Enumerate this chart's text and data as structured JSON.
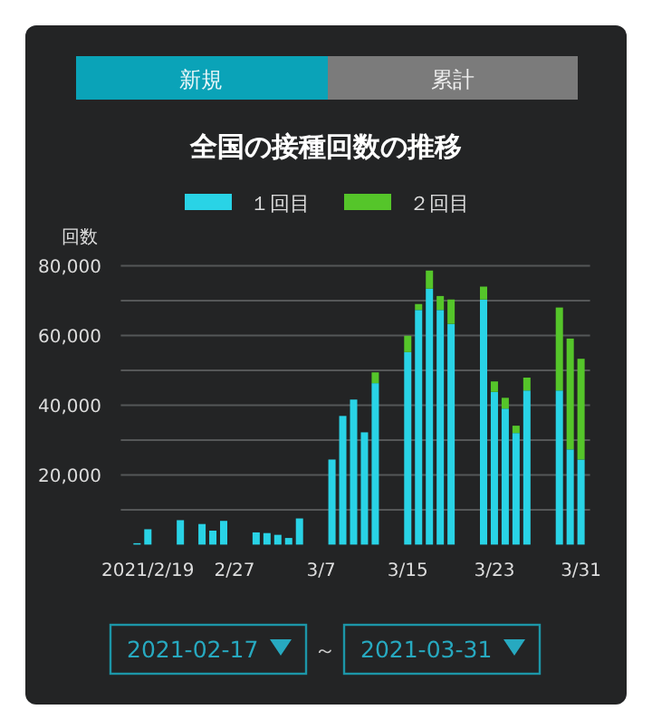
{
  "chart_data": {
    "type": "bar",
    "title": "全国の接種回数の推移",
    "ylabel": "回数",
    "stacked": true,
    "legend": "top",
    "grid": "y",
    "annotations": [
      "新規",
      "累計",
      "2021-02-17",
      "～",
      "2021-03-31"
    ],
    "categories": [
      null,
      null,
      "2021/2/19",
      null,
      null,
      null,
      null,
      null,
      null,
      null,
      "2/27",
      null,
      null,
      null,
      null,
      null,
      null,
      null,
      "3/7",
      null,
      null,
      null,
      null,
      null,
      null,
      null,
      "3/15",
      null,
      null,
      null,
      null,
      null,
      null,
      null,
      "3/23",
      null,
      null,
      null,
      null,
      null,
      null,
      null,
      "3/31"
    ],
    "ylim": [
      0,
      80000
    ],
    "yticks": [
      {
        "value": 10000,
        "label": null
      },
      {
        "value": 20000,
        "label": "20,000"
      },
      {
        "value": 30000,
        "label": null
      },
      {
        "value": 40000,
        "label": "40,000"
      },
      {
        "value": 50000,
        "label": null
      },
      {
        "value": 60000,
        "label": "60,000"
      },
      {
        "value": 70000,
        "label": null
      },
      {
        "value": 80000,
        "label": "80,000"
      }
    ],
    "series": [
      {
        "name": "１回目",
        "color": "#29d3e6",
        "values": [
          null,
          400,
          4400,
          null,
          null,
          7000,
          null,
          5900,
          4000,
          6800,
          null,
          null,
          3500,
          3300,
          2800,
          1900,
          7500,
          null,
          null,
          24400,
          36900,
          41600,
          32200,
          46300,
          null,
          null,
          55200,
          67300,
          73400,
          67300,
          63300,
          null,
          null,
          70300,
          43800,
          39000,
          32000,
          44200,
          null,
          null,
          44200,
          27300,
          24400
        ]
      },
      {
        "name": "２回目",
        "color": "#55c52a",
        "values": [
          null,
          null,
          null,
          null,
          null,
          null,
          null,
          null,
          null,
          null,
          null,
          null,
          null,
          null,
          null,
          null,
          null,
          null,
          null,
          null,
          null,
          null,
          null,
          3100,
          null,
          null,
          4700,
          1700,
          5200,
          4000,
          7000,
          null,
          null,
          3700,
          3000,
          3100,
          2100,
          3700,
          null,
          null,
          23800,
          31800,
          28900
        ]
      }
    ]
  }
}
